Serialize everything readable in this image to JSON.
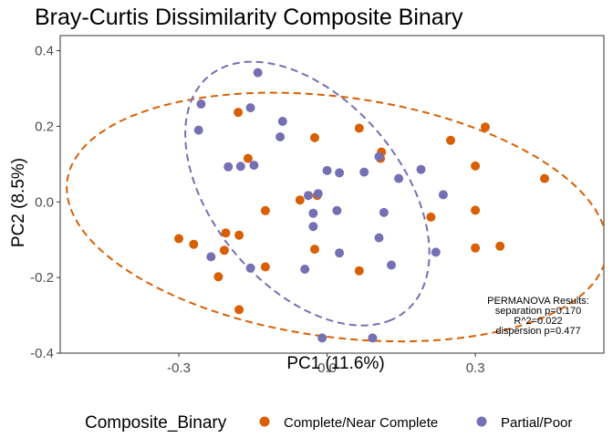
{
  "chart_data": {
    "type": "scatter",
    "title": "Bray-Curtis Dissimilarity Composite Binary",
    "xlabel": "PC1 (11.6%)",
    "ylabel": "PC2 (8.5%)",
    "xlim": [
      -0.54,
      0.56
    ],
    "ylim": [
      -0.4,
      0.44
    ],
    "x_ticks": [
      -0.3,
      0.0,
      0.3
    ],
    "x_tick_labels": [
      "-0.3",
      "0.0",
      "0.3"
    ],
    "y_ticks": [
      -0.4,
      -0.2,
      0.0,
      0.2,
      0.4
    ],
    "y_tick_labels": [
      "-0.4",
      "-0.2",
      "0.0",
      "0.2",
      "0.4"
    ],
    "grid": false,
    "legend": {
      "title": "Composite_Binary",
      "position": "bottom",
      "entries": [
        "Complete/Near Complete",
        "Partial/Poor"
      ]
    },
    "annotation": [
      "PERMANOVA Results:",
      "separation p=0.170",
      "R^2=0.022",
      "dispersion p=0.477"
    ],
    "series": [
      {
        "name": "Complete/Near Complete",
        "color": "#D95F02",
        "ellipse": {
          "center": [
            0.02,
            -0.04
          ],
          "rx": 0.555,
          "ry": 0.315,
          "angle_deg": -12
        },
        "points": [
          [
            0.44,
            0.062
          ],
          [
            0.32,
            0.198
          ],
          [
            0.25,
            0.163
          ],
          [
            0.3,
            0.095
          ],
          [
            0.3,
            -0.022
          ],
          [
            0.35,
            -0.117
          ],
          [
            0.3,
            -0.122
          ],
          [
            0.21,
            -0.04
          ],
          [
            0.11,
            0.132
          ],
          [
            0.065,
            0.195
          ],
          [
            -0.025,
            0.17
          ],
          [
            0.108,
            0.115
          ],
          [
            -0.055,
            0.005
          ],
          [
            -0.02,
            0.017
          ],
          [
            -0.025,
            -0.125
          ],
          [
            0.065,
            -0.182
          ],
          [
            -0.125,
            -0.023
          ],
          [
            -0.125,
            -0.172
          ],
          [
            -0.18,
            0.237
          ],
          [
            -0.16,
            0.115
          ],
          [
            -0.178,
            -0.088
          ],
          [
            -0.205,
            -0.082
          ],
          [
            -0.208,
            -0.128
          ],
          [
            -0.22,
            -0.198
          ],
          [
            -0.178,
            -0.285
          ],
          [
            -0.3,
            -0.097
          ],
          [
            -0.27,
            -0.112
          ]
        ]
      },
      {
        "name": "Partial/Poor",
        "color": "#7570B3",
        "ellipse": {
          "center": [
            -0.04,
            0.022
          ],
          "rx": 0.375,
          "ry": 0.205,
          "angle_deg": -64
        },
        "points": [
          [
            -0.14,
            0.342
          ],
          [
            -0.255,
            0.259
          ],
          [
            -0.155,
            0.249
          ],
          [
            -0.26,
            0.19
          ],
          [
            -0.09,
            0.213
          ],
          [
            -0.095,
            0.172
          ],
          [
            -0.148,
            0.097
          ],
          [
            -0.175,
            0.094
          ],
          [
            -0.2,
            0.093
          ],
          [
            0.0,
            0.083
          ],
          [
            0.025,
            0.077
          ],
          [
            0.075,
            0.079
          ],
          [
            0.105,
            0.12
          ],
          [
            0.145,
            0.062
          ],
          [
            0.19,
            0.086
          ],
          [
            0.235,
            0.019
          ],
          [
            -0.038,
            0.017
          ],
          [
            -0.018,
            0.022
          ],
          [
            0.02,
            -0.023
          ],
          [
            -0.028,
            -0.03
          ],
          [
            0.115,
            -0.028
          ],
          [
            -0.028,
            -0.065
          ],
          [
            0.105,
            -0.095
          ],
          [
            0.025,
            -0.135
          ],
          [
            0.22,
            -0.133
          ],
          [
            0.13,
            -0.167
          ],
          [
            -0.045,
            -0.178
          ],
          [
            -0.155,
            -0.175
          ],
          [
            -0.235,
            -0.145
          ],
          [
            -0.01,
            -0.36
          ],
          [
            0.092,
            -0.36
          ]
        ]
      }
    ]
  }
}
